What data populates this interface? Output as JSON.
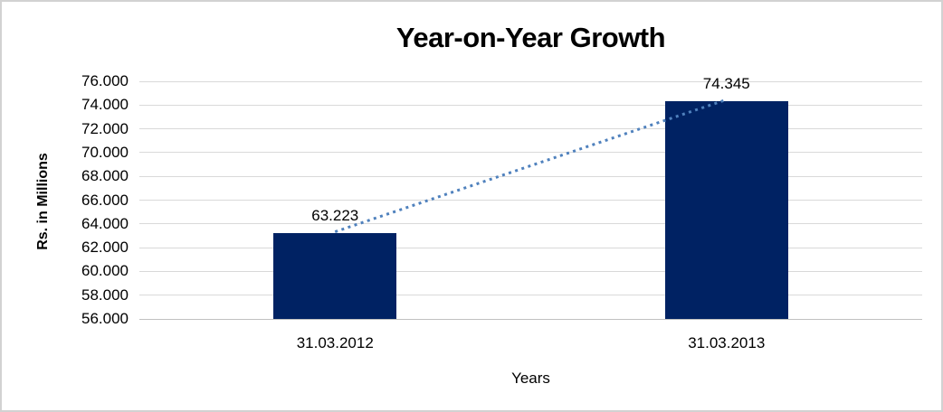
{
  "chart_data": {
    "type": "bar",
    "title": "Year-on-Year Growth",
    "xlabel": "Years",
    "ylabel": "Rs. in Millions",
    "categories": [
      "31.03.2012",
      "31.03.2013"
    ],
    "values": [
      63.223,
      74.345
    ],
    "data_labels": [
      "63.223",
      "74.345"
    ],
    "ylim": [
      56,
      76
    ],
    "y_tick_step": 2,
    "y_tick_labels": [
      "76.000",
      "74.000",
      "72.000",
      "70.000",
      "68.000",
      "66.000",
      "64.000",
      "62.000",
      "60.000",
      "58.000",
      "56.000"
    ],
    "grid": true,
    "legend": "none",
    "trend_line": {
      "style": "dotted",
      "from_series_point": 0,
      "to_series_point": 1
    }
  },
  "colors": {
    "bar": "#002263",
    "trend": "#4f81bd",
    "gridline": "#d9d9d9",
    "axis_line": "#c0c0c0",
    "frame_border": "#d2d2d2",
    "text": "#000000",
    "background": "#ffffff"
  }
}
